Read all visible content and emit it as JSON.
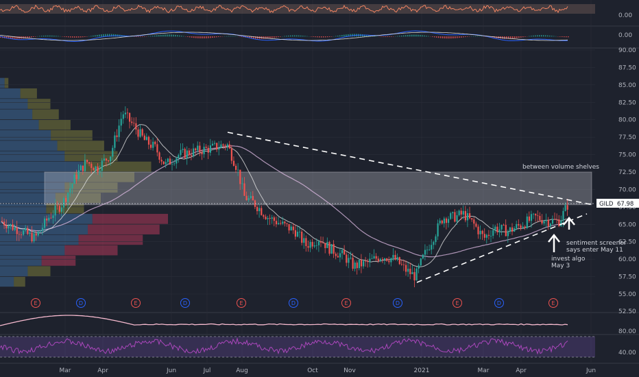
{
  "chart_data": {
    "type": "candlestick",
    "symbol": "GILD",
    "last_price": "67.98",
    "x_axis_labels": [
      "Mar",
      "Apr",
      "Jun",
      "Jul",
      "Aug",
      "Oct",
      "Nov",
      "2021",
      "Mar",
      "Apr",
      "Jun"
    ],
    "price_axis": {
      "ylim": [
        55,
        90
      ],
      "tick_labels": [
        "90.00",
        "87.50",
        "85.00",
        "82.50",
        "80.00",
        "77.50",
        "75.00",
        "72.50",
        "70.00",
        "67.50",
        "65.00",
        "62.50",
        "60.00",
        "57.50",
        "55.00"
      ]
    },
    "osc1_tick": "0.00",
    "macd_tick": "0.00",
    "vol_tick": "52.50",
    "rsi_ticks": [
      "80.00",
      "40.00"
    ],
    "events": [
      {
        "label": "E"
      },
      {
        "label": "D"
      },
      {
        "label": "E"
      },
      {
        "label": "D"
      },
      {
        "label": "E"
      },
      {
        "label": "D"
      },
      {
        "label": "E"
      },
      {
        "label": "D"
      },
      {
        "label": "E"
      },
      {
        "label": "D"
      },
      {
        "label": "E"
      }
    ],
    "zone": {
      "low": 67.8,
      "high": 72.5,
      "label": "between volume shelves"
    },
    "annotations": {
      "invest_algo": [
        "invest algo",
        "May 3"
      ],
      "sentiment": [
        "sentiment screener",
        "says enter May 11"
      ]
    },
    "colors": {
      "up": "#26a69a",
      "down": "#ef5350",
      "background": "#1e222d",
      "grid": "#2a2e39",
      "event_e": "#ef5350",
      "event_d": "#2962ff",
      "zone": "#c8c8d0",
      "ma_long": "#e1bee7",
      "ma_short": "#e0e0e0",
      "rsi_line": "#9c27b0"
    }
  }
}
